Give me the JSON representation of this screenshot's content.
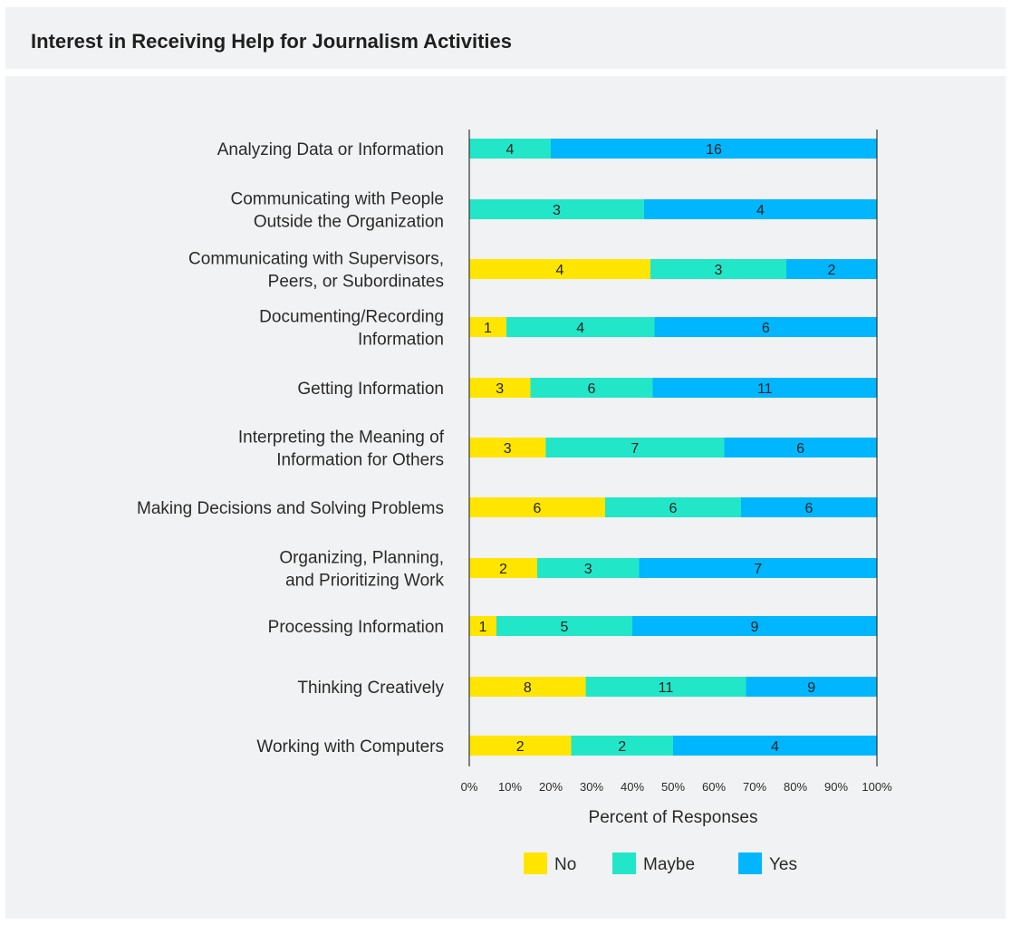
{
  "title": "Interest in Receiving Help for Journalism Activities",
  "colors": {
    "No": "#ffe500",
    "Maybe": "#22e6c8",
    "Yes": "#00b6ff"
  },
  "chart_data": {
    "type": "bar",
    "orientation": "horizontal",
    "stacked": "percent",
    "categories": [
      "Analyzing Data or Information",
      "Communicating with People Outside the Organization",
      "Communicating with Supervisors, Peers, or Subordinates",
      "Documenting/Recording Information",
      "Getting Information",
      "Interpreting the Meaning of Information for Others",
      "Making Decisions and Solving Problems",
      "Organizing, Planning, and Prioritizing Work",
      "Processing Information",
      "Thinking Creatively",
      "Working with Computers"
    ],
    "category_lines": [
      [
        "Analyzing Data or Information"
      ],
      [
        "Communicating with People",
        "Outside the Organization"
      ],
      [
        "Communicating with Supervisors,",
        "Peers, or Subordinates"
      ],
      [
        "Documenting/Recording",
        "Information"
      ],
      [
        "Getting Information"
      ],
      [
        "Interpreting the Meaning of",
        "Information for Others"
      ],
      [
        "Making Decisions and Solving Problems"
      ],
      [
        "Organizing, Planning,",
        "and Prioritizing Work"
      ],
      [
        "Processing Information"
      ],
      [
        "Thinking Creatively"
      ],
      [
        "Working with Computers"
      ]
    ],
    "series": [
      {
        "name": "No",
        "values": [
          0,
          0,
          4,
          1,
          3,
          3,
          6,
          2,
          1,
          8,
          2
        ]
      },
      {
        "name": "Maybe",
        "values": [
          4,
          3,
          3,
          4,
          6,
          7,
          6,
          3,
          5,
          11,
          2
        ]
      },
      {
        "name": "Yes",
        "values": [
          16,
          4,
          2,
          6,
          11,
          6,
          6,
          7,
          9,
          9,
          4
        ]
      }
    ],
    "xlabel": "Percent of Responses",
    "xticks": [
      "0%",
      "10%",
      "20%",
      "30%",
      "40%",
      "50%",
      "60%",
      "70%",
      "80%",
      "90%",
      "100%"
    ],
    "xlim": [
      0,
      100
    ],
    "legend": {
      "position": "bottom",
      "entries": [
        "No",
        "Maybe",
        "Yes"
      ]
    },
    "grid": false
  }
}
